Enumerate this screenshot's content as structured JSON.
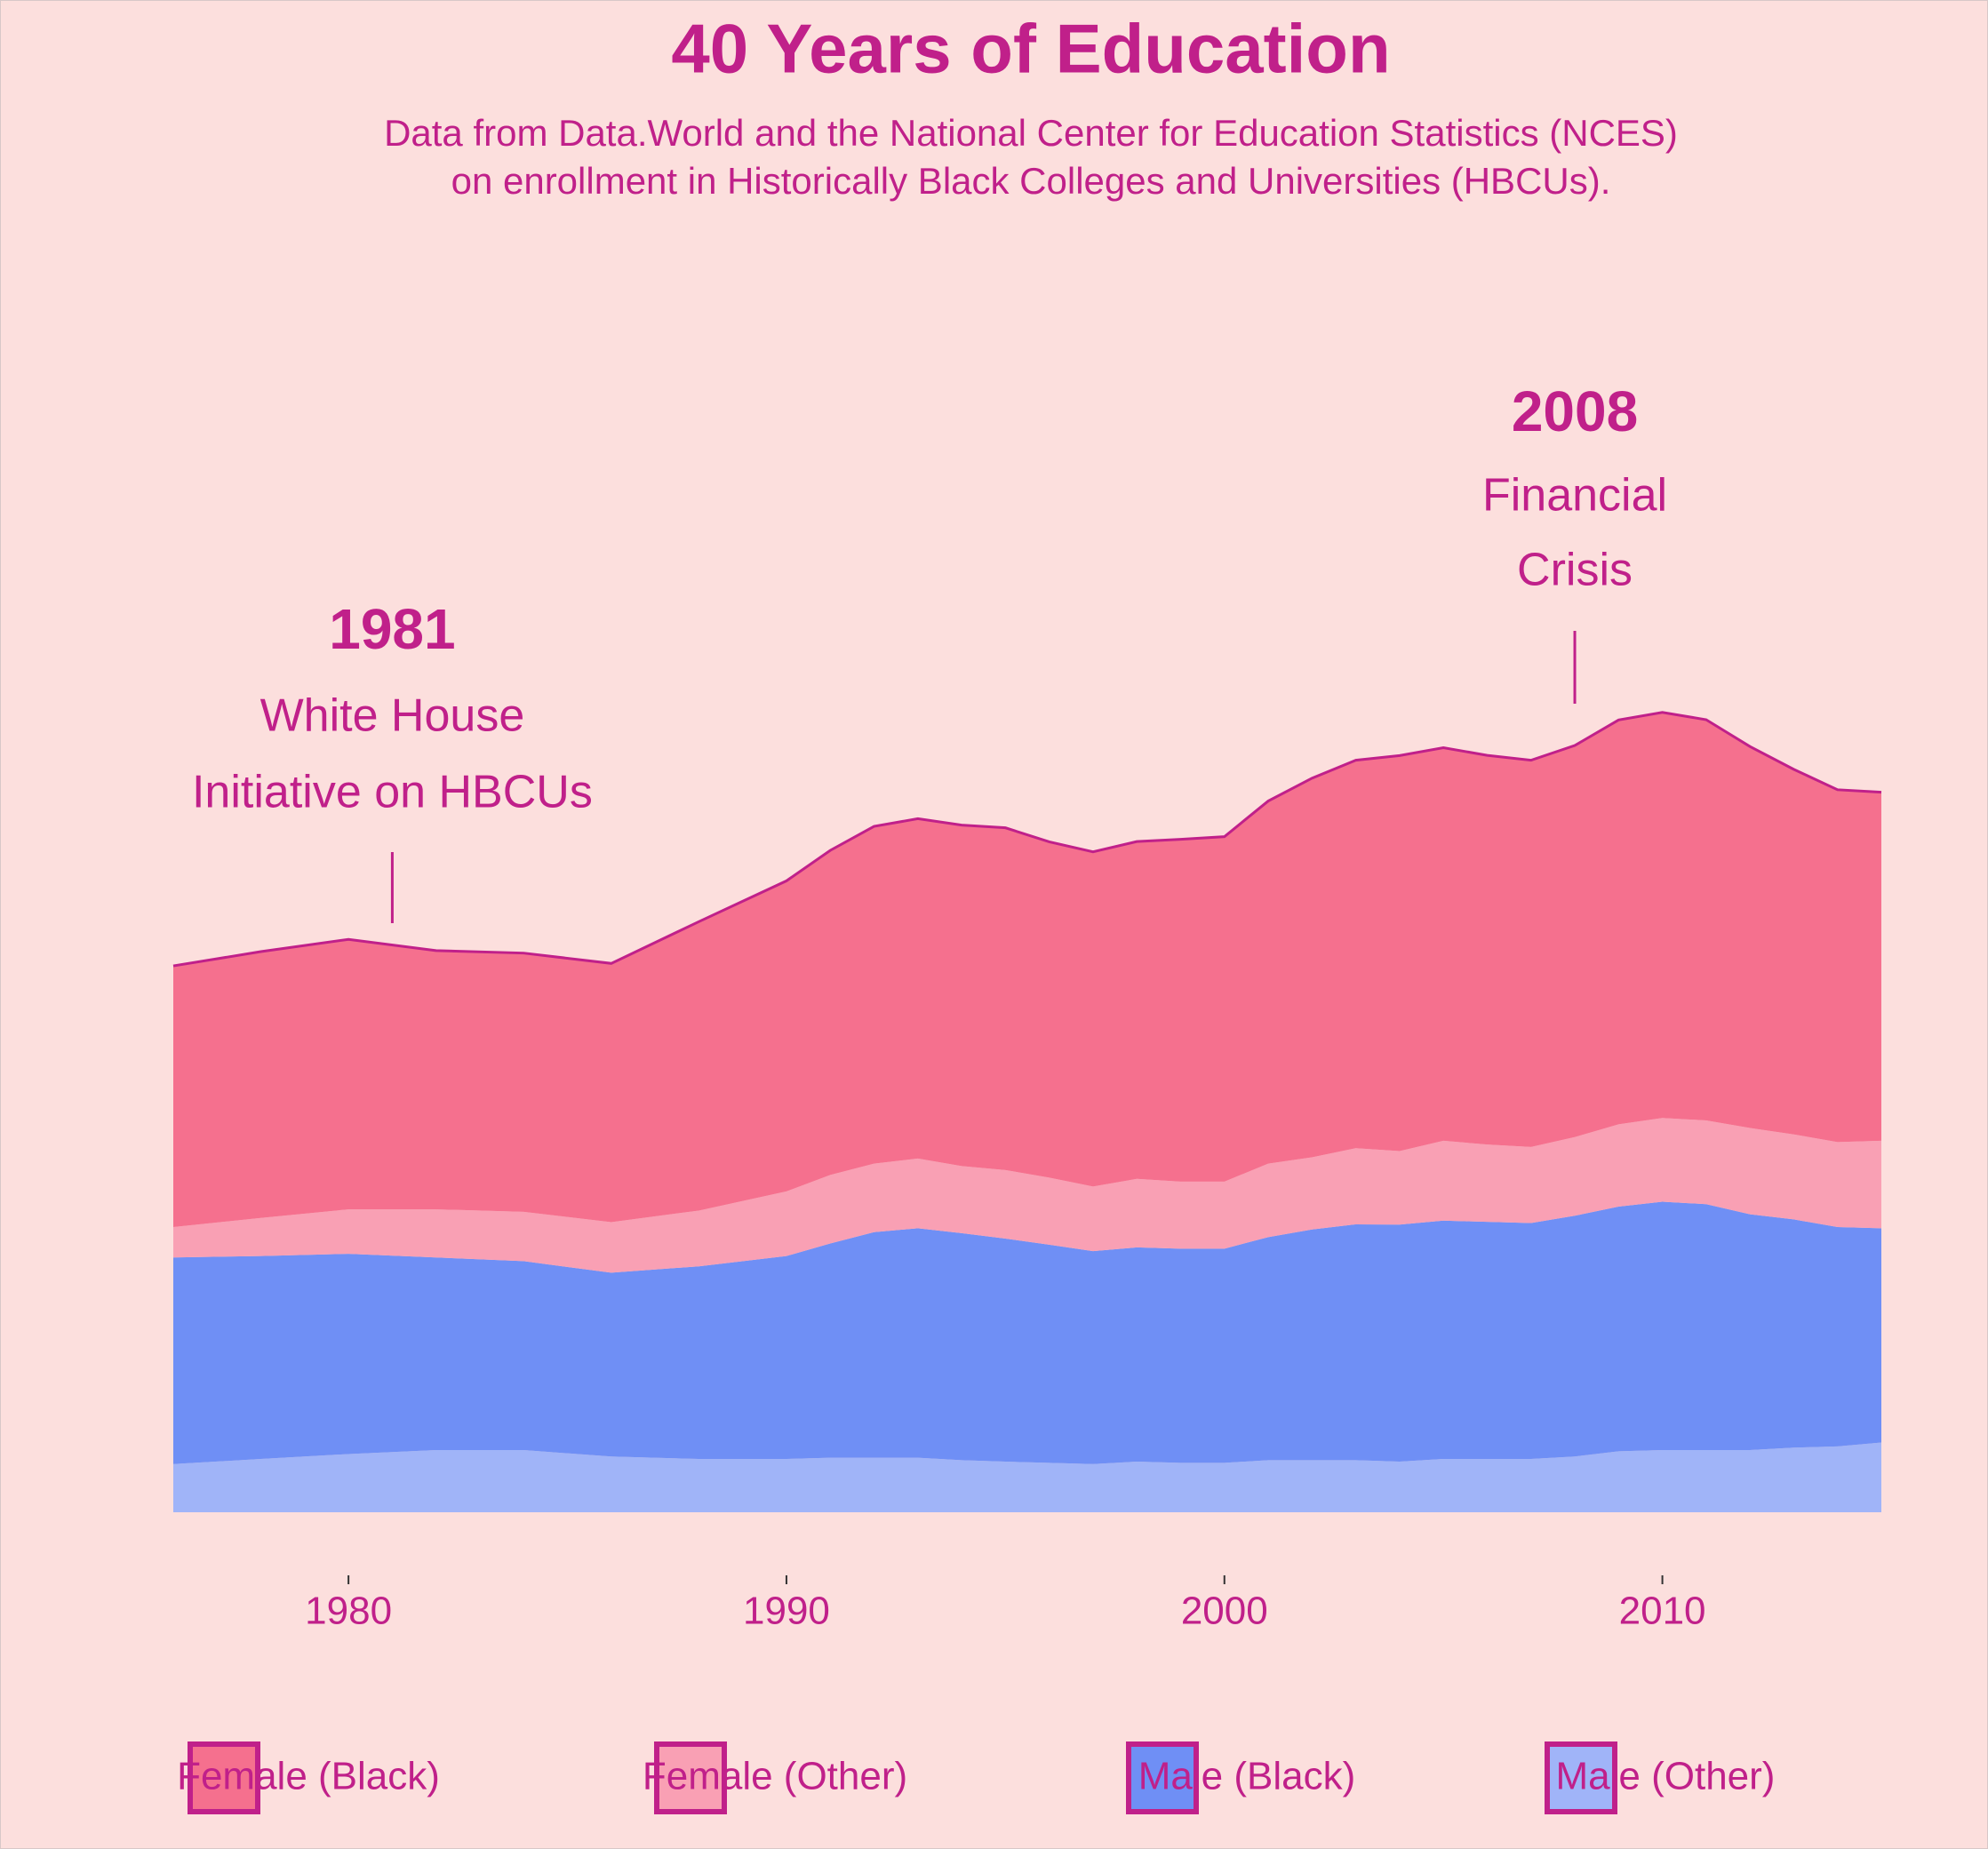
{
  "chart_data": {
    "type": "stacked-area",
    "title": "40 Years of Education",
    "subtitle": [
      "Data from Data.World and the National Center for Education Statistics (NCES)",
      "on enrollment in Historically Black Colleges and Universities (HBCUs)."
    ],
    "x": [
      1976,
      1978,
      1980,
      1982,
      1984,
      1986,
      1988,
      1990,
      1991,
      1992,
      1993,
      1994,
      1995,
      1996,
      1997,
      1998,
      1999,
      2000,
      2001,
      2002,
      2003,
      2004,
      2005,
      2006,
      2007,
      2008,
      2009,
      2010,
      2011,
      2012,
      2013,
      2014,
      2015
    ],
    "series": [
      {
        "name": "Female (Black)",
        "color": "#f5708e",
        "values": [
          106300,
          108400,
          109900,
          105300,
          105300,
          105300,
          117600,
          126400,
          132100,
          137300,
          138300,
          138800,
          139300,
          136700,
          136200,
          137300,
          139300,
          140400,
          147600,
          154300,
          157900,
          161000,
          160000,
          158400,
          157400,
          159400,
          164600,
          165100,
          163100,
          155300,
          148600,
          143400,
          141900
        ]
      },
      {
        "name": "Female (Other)",
        "color": "#f9a0b4",
        "values": [
          12400,
          15500,
          18100,
          19600,
          20100,
          20600,
          22700,
          26300,
          27900,
          27900,
          28400,
          27300,
          27900,
          27300,
          26300,
          27900,
          27300,
          27300,
          29900,
          29400,
          31000,
          29900,
          32500,
          31500,
          31000,
          32000,
          33500,
          34100,
          34100,
          35100,
          34600,
          34600,
          35600
        ]
      },
      {
        "name": "Male (Black)",
        "color": "#6f8ff5",
        "values": [
          84100,
          82600,
          81500,
          78400,
          76900,
          74800,
          78400,
          82600,
          87200,
          91800,
          93400,
          92400,
          90800,
          88800,
          86700,
          87200,
          87200,
          87200,
          90800,
          93900,
          96000,
          96500,
          97000,
          96500,
          96000,
          98000,
          99600,
          101100,
          100100,
          96000,
          92900,
          89300,
          87200
        ]
      },
      {
        "name": "Male (Other)",
        "color": "#a0b4f8",
        "values": [
          19600,
          21700,
          23700,
          25300,
          25300,
          22700,
          21700,
          21700,
          22200,
          22200,
          22200,
          21200,
          20600,
          20100,
          19600,
          20600,
          20100,
          20100,
          21200,
          21200,
          21200,
          20600,
          21700,
          21700,
          21700,
          22700,
          24800,
          25300,
          25300,
          25300,
          26300,
          26800,
          28400
        ]
      }
    ],
    "xlim": [
      1976,
      2015
    ],
    "xticks": [
      1980,
      1990,
      2000,
      2010
    ],
    "ylim": [
      0,
      400000
    ],
    "annotations": [
      {
        "x": 1981,
        "label": "1981",
        "text": [
          "White House",
          "Initiative on HBCUs"
        ]
      },
      {
        "x": 2008,
        "label": "2008",
        "text": [
          "Financial",
          "Crisis"
        ]
      }
    ]
  }
}
